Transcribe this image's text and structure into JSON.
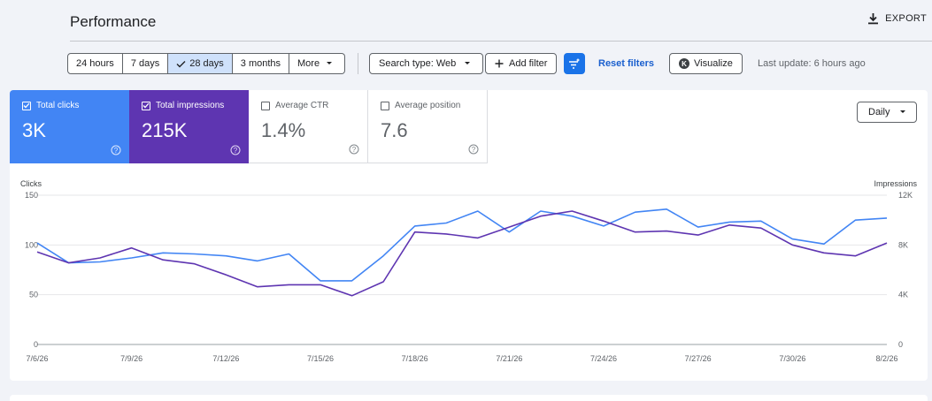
{
  "header": {
    "title": "Performance",
    "export_label": "EXPORT",
    "export_icon": "download-icon"
  },
  "toolbar": {
    "date_ranges": [
      {
        "label": "24 hours",
        "selected": false
      },
      {
        "label": "7 days",
        "selected": false
      },
      {
        "label": "28 days",
        "selected": true
      },
      {
        "label": "3 months",
        "selected": false
      },
      {
        "label": "More",
        "selected": false
      }
    ],
    "search_type": "Search type: Web",
    "add_filter": "Add filter",
    "reset_filters": "Reset filters",
    "visualize": "Visualize",
    "visualize_badge": "K",
    "last_update": "Last update: 6 hours ago",
    "accent": "#1a73e8"
  },
  "metrics": [
    {
      "label": "Total clicks",
      "value": "3K",
      "checked": true,
      "color": "#4285f4"
    },
    {
      "label": "Total impressions",
      "value": "215K",
      "checked": true,
      "color": "#5e35b1"
    },
    {
      "label": "Average CTR",
      "value": "1.4%",
      "checked": false
    },
    {
      "label": "Average position",
      "value": "7.6",
      "checked": false
    }
  ],
  "granularity": "Daily",
  "chart_data": {
    "type": "line",
    "left_axis": {
      "label": "Clicks",
      "ticks": [
        "0",
        "50",
        "100",
        "150"
      ],
      "range": [
        0,
        150
      ]
    },
    "right_axis": {
      "label": "Impressions",
      "ticks": [
        "0",
        "4K",
        "8K",
        "12K"
      ],
      "range": [
        0,
        12000
      ]
    },
    "x_tick_labels": [
      "7/6/26",
      "7/9/26",
      "7/12/26",
      "7/15/26",
      "7/18/26",
      "7/21/26",
      "7/24/26",
      "7/27/26",
      "7/30/26",
      "8/2/26"
    ],
    "x": [
      "7/6/26",
      "7/7/26",
      "7/8/26",
      "7/9/26",
      "7/10/26",
      "7/11/26",
      "7/12/26",
      "7/13/26",
      "7/14/26",
      "7/15/26",
      "7/16/26",
      "7/17/26",
      "7/18/26",
      "7/19/26",
      "7/20/26",
      "7/21/26",
      "7/22/26",
      "7/23/26",
      "7/24/26",
      "7/25/26",
      "7/26/26",
      "7/27/26",
      "7/28/26",
      "7/29/26",
      "7/30/26",
      "7/31/26",
      "8/1/26",
      "8/2/26"
    ],
    "grid": true,
    "series": [
      {
        "name": "Clicks",
        "axis": "left",
        "color": "#4285f4",
        "values": [
          102,
          82,
          83,
          87,
          92,
          91,
          89,
          84,
          91,
          64,
          64,
          89,
          119,
          122,
          134,
          113,
          134,
          129,
          119,
          133,
          136,
          118,
          123,
          124,
          106,
          101,
          125,
          127
        ]
      },
      {
        "name": "Impressions",
        "axis": "right",
        "color": "#5e35b1",
        "values": [
          7440,
          6560,
          6960,
          7760,
          6800,
          6480,
          5600,
          4640,
          4800,
          4800,
          3920,
          5040,
          9040,
          8880,
          8560,
          9440,
          10320,
          10720,
          9920,
          9040,
          9120,
          8800,
          9600,
          9360,
          8000,
          7360,
          7120,
          8160
        ]
      }
    ]
  }
}
